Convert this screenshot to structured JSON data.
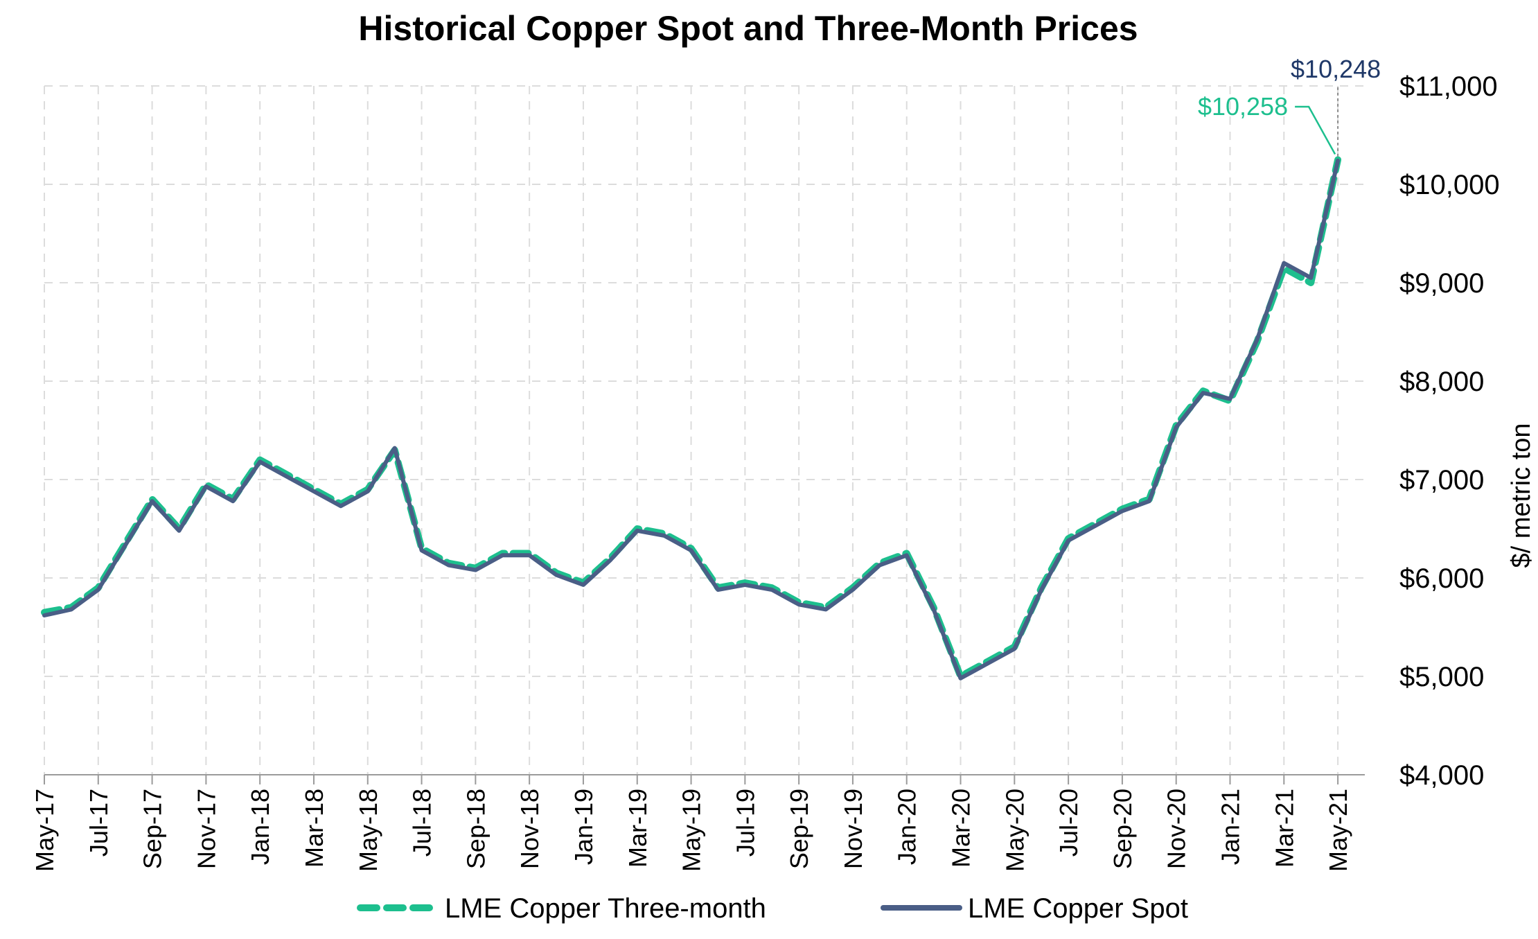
{
  "chart_data": {
    "type": "line",
    "title": "Historical Copper Spot and Three-Month Prices",
    "xlabel": "",
    "ylabel": "$/ metric ton",
    "ylim": [
      4000,
      11000
    ],
    "y_axis_position": "right",
    "y_ticks": [
      {
        "value": 4000,
        "label": "$4,000"
      },
      {
        "value": 5000,
        "label": "$5,000"
      },
      {
        "value": 6000,
        "label": "$6,000"
      },
      {
        "value": 7000,
        "label": "$7,000"
      },
      {
        "value": 8000,
        "label": "$8,000"
      },
      {
        "value": 9000,
        "label": "$9,000"
      },
      {
        "value": 10000,
        "label": "$10,000"
      },
      {
        "value": 11000,
        "label": "$11,000"
      }
    ],
    "x_ticks": [
      "May-17",
      "Jul-17",
      "Sep-17",
      "Nov-17",
      "Jan-18",
      "Mar-18",
      "May-18",
      "Jul-18",
      "Sep-18",
      "Nov-18",
      "Jan-19",
      "Mar-19",
      "May-19",
      "Jul-19",
      "Sep-19",
      "Nov-19",
      "Jan-20",
      "Mar-20",
      "May-20",
      "Jul-20",
      "Sep-20",
      "Nov-20",
      "Jan-21",
      "Mar-21",
      "May-21"
    ],
    "grid": true,
    "legend_position": "bottom",
    "x": [
      "2017-05",
      "2017-06",
      "2017-07",
      "2017-08",
      "2017-09",
      "2017-10",
      "2017-11",
      "2017-12",
      "2018-01",
      "2018-02",
      "2018-03",
      "2018-04",
      "2018-05",
      "2018-06",
      "2018-07",
      "2018-08",
      "2018-09",
      "2018-10",
      "2018-11",
      "2018-12",
      "2019-01",
      "2019-02",
      "2019-03",
      "2019-04",
      "2019-05",
      "2019-06",
      "2019-07",
      "2019-08",
      "2019-09",
      "2019-10",
      "2019-11",
      "2019-12",
      "2020-01",
      "2020-02",
      "2020-03",
      "2020-04",
      "2020-05",
      "2020-06",
      "2020-07",
      "2020-08",
      "2020-09",
      "2020-10",
      "2020-11",
      "2020-12",
      "2021-01",
      "2021-02",
      "2021-03",
      "2021-04",
      "2021-05"
    ],
    "series": [
      {
        "name": "LME Copper Three-month",
        "color": "#1dbf8e",
        "style": "dashed",
        "values": [
          5650,
          5700,
          5900,
          6350,
          6800,
          6500,
          6950,
          6800,
          7200,
          7050,
          6900,
          6750,
          6900,
          7300,
          6300,
          6150,
          6100,
          6250,
          6250,
          6050,
          5950,
          6200,
          6500,
          6450,
          6300,
          5900,
          5950,
          5900,
          5750,
          5700,
          5900,
          6150,
          6250,
          5700,
          5000,
          5150,
          5300,
          5900,
          6400,
          6550,
          6700,
          6800,
          7550,
          7900,
          7800,
          8400,
          9150,
          9000,
          10250
        ]
      },
      {
        "name": "LME Copper Spot",
        "color": "#4a5e86",
        "style": "solid",
        "values": [
          5620,
          5680,
          5880,
          6330,
          6780,
          6480,
          6930,
          6780,
          7180,
          7030,
          6880,
          6730,
          6880,
          7320,
          6280,
          6130,
          6080,
          6230,
          6230,
          6030,
          5930,
          6180,
          6480,
          6430,
          6280,
          5880,
          5930,
          5880,
          5730,
          5680,
          5880,
          6130,
          6230,
          5680,
          4980,
          5130,
          5280,
          5880,
          6380,
          6530,
          6680,
          6780,
          7530,
          7880,
          7820,
          8420,
          9200,
          9050,
          10240
        ]
      }
    ],
    "annotations": [
      {
        "text": "$10,248",
        "series": "LME Copper Spot",
        "color": "#1f3868"
      },
      {
        "text": "$10,258",
        "series": "LME Copper Three-month",
        "color": "#1dbf8e"
      }
    ]
  }
}
